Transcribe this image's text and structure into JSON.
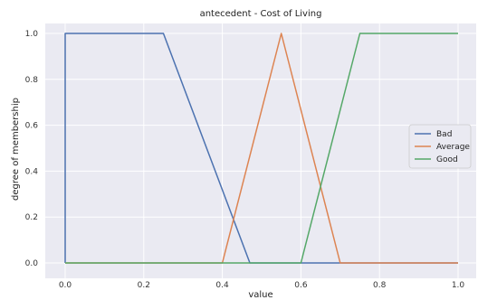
{
  "chart_data": {
    "type": "line",
    "title": "antecedent - Cost of Living",
    "xlabel": "value",
    "ylabel": "degree of membership",
    "xlim": [
      0.0,
      1.0
    ],
    "ylim": [
      0.0,
      1.0
    ],
    "xticks": [
      "0.0",
      "0.2",
      "0.4",
      "0.6",
      "0.8",
      "1.0"
    ],
    "yticks": [
      "0.0",
      "0.2",
      "0.4",
      "0.6",
      "0.8",
      "1.0"
    ],
    "grid": true,
    "legend_position": "center-right",
    "background_color": "#eaeaf2",
    "grid_color": "#ffffff",
    "series": [
      {
        "name": "Bad",
        "color": "#4c72b0",
        "x": [
          0.0,
          0.0,
          0.25,
          0.47,
          1.0
        ],
        "y": [
          0.0,
          1.0,
          1.0,
          0.0,
          0.0
        ]
      },
      {
        "name": "Average",
        "color": "#dd8452",
        "x": [
          0.0,
          0.4,
          0.55,
          0.7,
          1.0
        ],
        "y": [
          0.0,
          0.0,
          1.0,
          0.0,
          0.0
        ]
      },
      {
        "name": "Good",
        "color": "#55a868",
        "x": [
          0.0,
          0.6,
          0.75,
          1.0
        ],
        "y": [
          0.0,
          0.0,
          1.0,
          1.0
        ]
      }
    ]
  }
}
